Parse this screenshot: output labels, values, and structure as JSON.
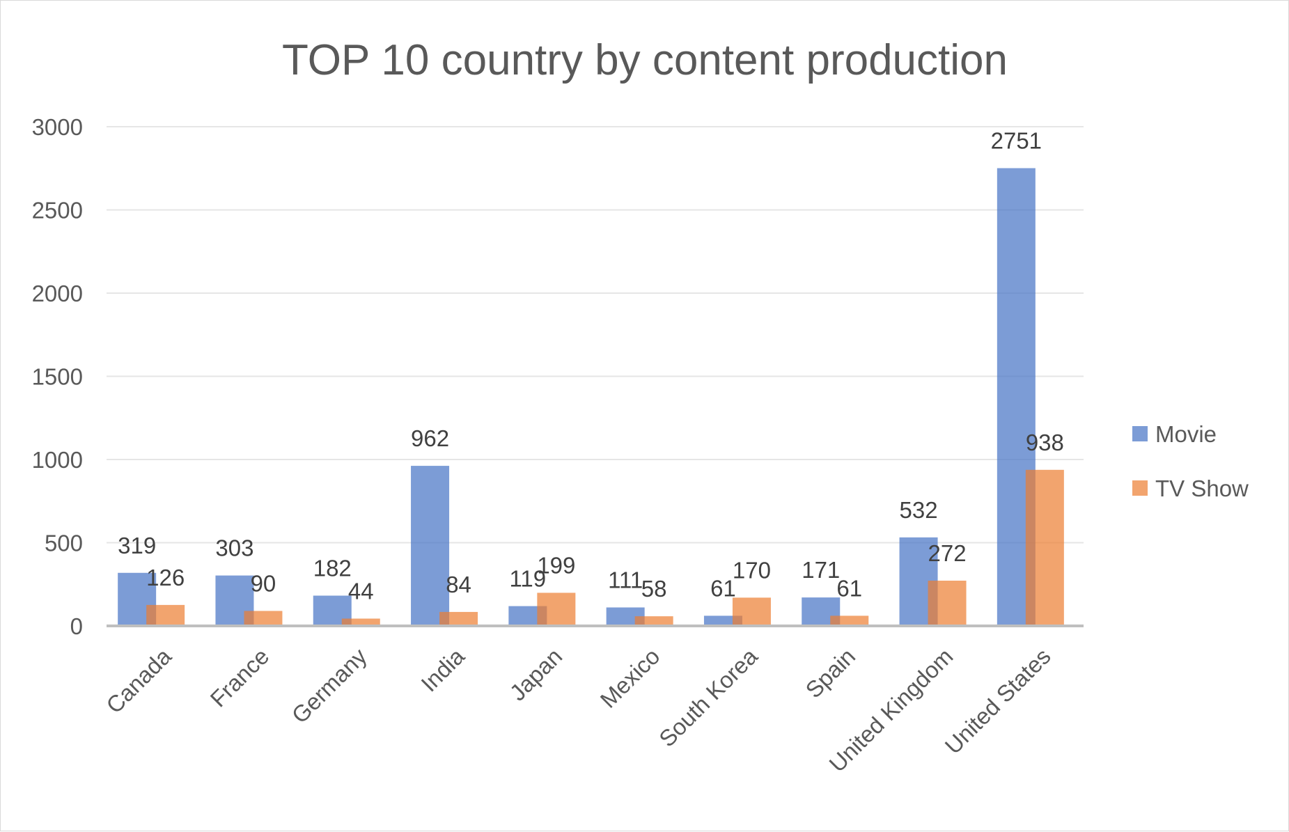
{
  "chart_data": {
    "type": "bar",
    "title": "TOP 10 country by content production",
    "xlabel": "",
    "ylabel": "",
    "categories": [
      "Canada",
      "France",
      "Germany",
      "India",
      "Japan",
      "Mexico",
      "South Korea",
      "Spain",
      "United Kingdom",
      "United States"
    ],
    "series": [
      {
        "name": "Movie",
        "color": "#4472c4",
        "values": [
          319,
          303,
          182,
          962,
          119,
          111,
          61,
          171,
          532,
          2751
        ]
      },
      {
        "name": "TV Show",
        "color": "#ed7d31",
        "values": [
          126,
          90,
          44,
          84,
          199,
          58,
          170,
          61,
          272,
          938
        ]
      }
    ],
    "ylim": [
      0,
      3000
    ],
    "yticks": [
      0,
      500,
      1000,
      1500,
      2000,
      2500,
      3000
    ],
    "grid": true,
    "legend": "right"
  }
}
